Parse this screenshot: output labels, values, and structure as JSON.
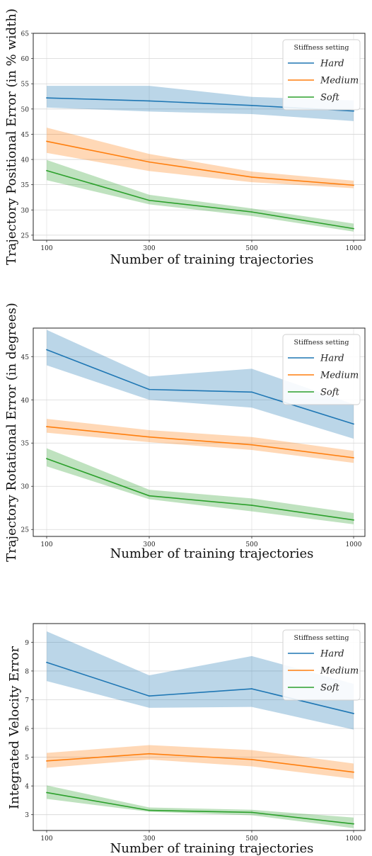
{
  "colors": {
    "Hard": "#1f77b4",
    "Medium": "#ff7f0e",
    "Soft": "#2ca02c"
  },
  "chart_data": [
    {
      "type": "line",
      "title": "",
      "xlabel": "Number of training trajectories",
      "ylabel": "Trajectory Positional Error (in % width)",
      "x": [
        100,
        300,
        500,
        1000
      ],
      "xticks": [
        "100",
        "300",
        "500",
        "1000"
      ],
      "yticks": [
        25,
        30,
        35,
        40,
        45,
        50,
        55,
        60,
        65
      ],
      "ylim": [
        24,
        65
      ],
      "grid": true,
      "legend": {
        "title": "Stiffness setting",
        "placement": "top-right"
      },
      "series": [
        {
          "name": "Hard",
          "values": [
            52.2,
            51.6,
            50.7,
            49.6
          ],
          "lower": [
            50.3,
            49.5,
            49.0,
            47.6
          ],
          "upper": [
            54.6,
            54.6,
            52.4,
            51.7
          ]
        },
        {
          "name": "Medium",
          "values": [
            43.6,
            39.5,
            36.5,
            34.9
          ],
          "lower": [
            41.3,
            37.7,
            35.5,
            34.3
          ],
          "upper": [
            46.3,
            41.1,
            37.6,
            35.8
          ]
        },
        {
          "name": "Soft",
          "values": [
            37.8,
            31.9,
            29.6,
            26.3
          ],
          "lower": [
            35.9,
            31.1,
            28.8,
            25.7
          ],
          "upper": [
            39.9,
            33.0,
            30.3,
            27.3
          ]
        }
      ]
    },
    {
      "type": "line",
      "title": "",
      "xlabel": "Number of training trajectories",
      "ylabel": "Trajectory Rotational Error (in degrees)",
      "x": [
        100,
        300,
        500,
        1000
      ],
      "xticks": [
        "100",
        "300",
        "500",
        "1000"
      ],
      "yticks": [
        25,
        30,
        35,
        40,
        45
      ],
      "ylim": [
        24.2,
        48.3
      ],
      "grid": true,
      "legend": {
        "title": "Stiffness setting",
        "placement": "top-right"
      },
      "series": [
        {
          "name": "Hard",
          "values": [
            45.8,
            41.2,
            40.9,
            37.2
          ],
          "lower": [
            44.0,
            40.0,
            39.1,
            35.5
          ],
          "upper": [
            48.1,
            42.7,
            43.6,
            39.5
          ]
        },
        {
          "name": "Medium",
          "values": [
            36.9,
            35.7,
            34.8,
            33.3
          ],
          "lower": [
            36.2,
            35.1,
            34.2,
            32.7
          ],
          "upper": [
            37.8,
            36.5,
            35.7,
            34.1
          ]
        },
        {
          "name": "Soft",
          "values": [
            33.2,
            28.9,
            27.8,
            26.1
          ],
          "lower": [
            32.3,
            28.5,
            27.1,
            25.6
          ],
          "upper": [
            34.4,
            29.6,
            28.6,
            26.9
          ]
        }
      ]
    },
    {
      "type": "line",
      "title": "",
      "xlabel": "Number of training trajectories",
      "ylabel": "Integrated Velocity Error",
      "x": [
        100,
        300,
        500,
        1000
      ],
      "xticks": [
        "100",
        "300",
        "500",
        "1000"
      ],
      "yticks": [
        3,
        4,
        5,
        6,
        7,
        8,
        9
      ],
      "ylim": [
        2.45,
        9.65
      ],
      "grid": true,
      "legend": {
        "title": "Stiffness setting",
        "placement": "top-right"
      },
      "series": [
        {
          "name": "Hard",
          "values": [
            8.3,
            7.13,
            7.38,
            6.52
          ],
          "lower": [
            7.65,
            6.72,
            6.75,
            5.96
          ],
          "upper": [
            9.38,
            7.85,
            8.52,
            7.55
          ]
        },
        {
          "name": "Medium",
          "values": [
            4.87,
            5.12,
            4.92,
            4.48
          ],
          "lower": [
            4.63,
            4.92,
            4.68,
            4.25
          ],
          "upper": [
            5.15,
            5.42,
            5.25,
            4.78
          ]
        },
        {
          "name": "Soft",
          "values": [
            3.77,
            3.15,
            3.08,
            2.68
          ],
          "lower": [
            3.55,
            3.1,
            2.98,
            2.53
          ],
          "upper": [
            4.02,
            3.25,
            3.17,
            2.9
          ]
        }
      ]
    }
  ]
}
